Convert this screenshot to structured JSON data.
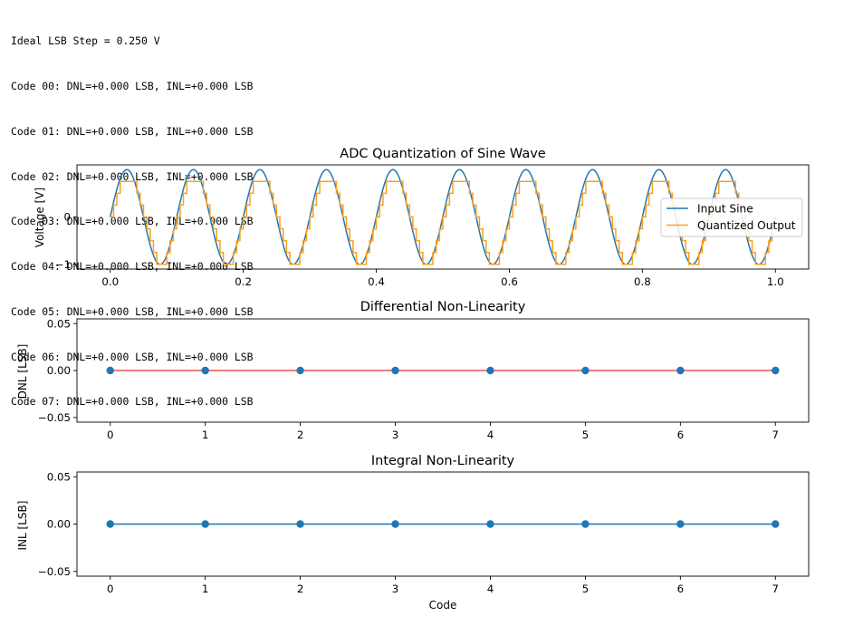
{
  "console": {
    "lines": [
      "Ideal LSB Step = 0.250 V",
      "Code 00: DNL=+0.000 LSB, INL=+0.000 LSB",
      "Code 01: DNL=+0.000 LSB, INL=+0.000 LSB",
      "Code 02: DNL=+0.000 LSB, INL=+0.000 LSB",
      "Code 03: DNL=+0.000 LSB, INL=+0.000 LSB",
      "Code 04: DNL=+0.000 LSB, INL=+0.000 LSB",
      "Code 05: DNL=+0.000 LSB, INL=+0.000 LSB",
      "Code 06: DNL=+0.000 LSB, INL=+0.000 LSB",
      "Code 07: DNL=+0.000 LSB, INL=+0.000 LSB"
    ]
  },
  "chart_data": [
    {
      "type": "line",
      "title": "ADC Quantization of Sine Wave",
      "xlabel": "",
      "ylabel": "Voltage [V]",
      "xlim": [
        -0.05,
        1.05
      ],
      "ylim": [
        -1.1,
        1.1
      ],
      "xticks": [
        0.0,
        0.2,
        0.4,
        0.6,
        0.8,
        1.0
      ],
      "xtick_labels": [
        "0.0",
        "0.2",
        "0.4",
        "0.6",
        "0.8",
        "1.0"
      ],
      "yticks": [
        -1,
        0
      ],
      "ytick_labels": [
        "−1",
        "0"
      ],
      "signal": {
        "frequency_hz": 10,
        "amplitude": 1.0,
        "samples": 200,
        "lsb": 0.25,
        "levels": [
          -1,
          -0.75,
          -0.5,
          -0.25,
          0,
          0.25,
          0.5,
          0.75
        ]
      },
      "series": [
        {
          "name": "Input Sine",
          "color": "#1f77b4",
          "style": "line"
        },
        {
          "name": "Quantized Output",
          "color": "#ff9f1c",
          "style": "step"
        }
      ],
      "legend": "center-right",
      "grid": false
    },
    {
      "type": "line",
      "title": "Differential Non-Linearity",
      "xlabel": "",
      "ylabel": "DNL [LSB]",
      "x": [
        0,
        1,
        2,
        3,
        4,
        5,
        6,
        7
      ],
      "values": [
        0,
        0,
        0,
        0,
        0,
        0,
        0,
        0
      ],
      "xlim": [
        -0.35,
        7.35
      ],
      "ylim": [
        -0.055,
        0.055
      ],
      "yticks": [
        -0.05,
        0.0,
        0.05
      ],
      "ytick_labels": [
        "−0.05",
        "0.00",
        "0.05"
      ],
      "marker_color": "#1f77b4",
      "line_color": "#e8524f",
      "grid": false
    },
    {
      "type": "line",
      "title": "Integral Non-Linearity",
      "xlabel": "Code",
      "ylabel": "INL [LSB]",
      "x": [
        0,
        1,
        2,
        3,
        4,
        5,
        6,
        7
      ],
      "values": [
        0,
        0,
        0,
        0,
        0,
        0,
        0,
        0
      ],
      "xlim": [
        -0.35,
        7.35
      ],
      "ylim": [
        -0.055,
        0.055
      ],
      "yticks": [
        -0.05,
        0.0,
        0.05
      ],
      "ytick_labels": [
        "−0.05",
        "0.00",
        "0.05"
      ],
      "marker_color": "#1f77b4",
      "line_color": "#1f77b4",
      "grid": false
    }
  ]
}
